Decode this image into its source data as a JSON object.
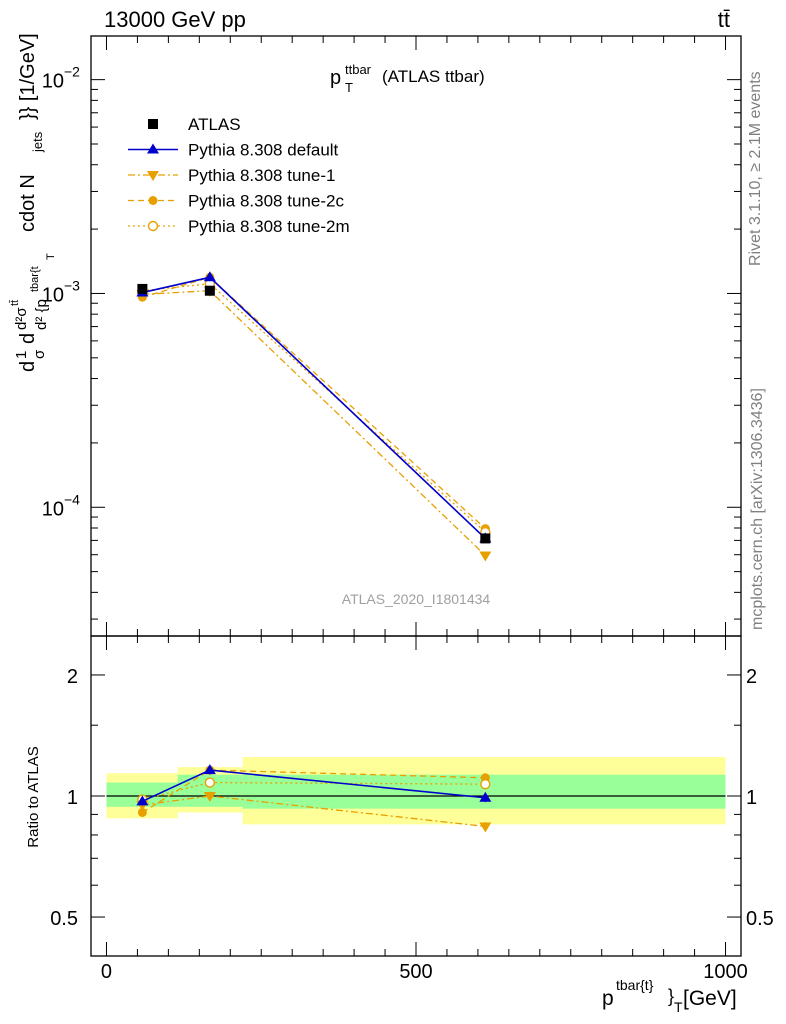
{
  "header": {
    "left": "13000 GeV pp",
    "right": "tt̄"
  },
  "side_text": {
    "rivet": "Rivet 3.1.10, ≥ 2.1M events",
    "mcplots": "mcplots.cern.ch [arXiv:1306.3436]"
  },
  "watermark": "ATLAS_2020_I1801434",
  "colors": {
    "atlas": "#000000",
    "default": "#0000cc",
    "tunes": "#e8a000",
    "band_inner": "#99ff99",
    "band_outer": "#ffff99"
  },
  "chart_data": [
    {
      "type": "line",
      "panel": "main",
      "title": "p_T^{ttbar} (ATLAS ttbar)",
      "title_parts": {
        "main": "p",
        "sup": "ttbar",
        "sub": "T",
        "suffix": "(ATLAS ttbar)"
      },
      "ylabel": "d(1/σ) d²σ^{ttbar} / d² {p_T^{tbar{t}} cdot N_jets}} [1/GeV]",
      "ylabel_parts": [
        "d",
        "1",
        "σ",
        "d",
        "d²σ",
        "tt̄",
        "d² {p",
        "tbar{t",
        "T",
        "cdot N",
        "jets",
        "}} [1/GeV]"
      ],
      "yscale": "log",
      "ylim": [
        2.5e-05,
        0.016
      ],
      "xlim": [
        -25,
        1025
      ],
      "ytick_labels": [
        {
          "value": 0.0001,
          "base": "10",
          "exp": "−4"
        },
        {
          "value": 0.001,
          "base": "10",
          "exp": "−3"
        },
        {
          "value": 0.01,
          "base": "10",
          "exp": "−2"
        }
      ],
      "legend": {
        "position": "top-left",
        "entries": [
          {
            "label": "ATLAS",
            "key": "atlas"
          },
          {
            "label": "Pythia 8.308 default",
            "key": "default"
          },
          {
            "label": "Pythia 8.308 tune-1",
            "key": "tune1"
          },
          {
            "label": "Pythia 8.308 tune-2c",
            "key": "tune2c"
          },
          {
            "label": "Pythia 8.308 tune-2m",
            "key": "tune2m"
          }
        ]
      },
      "series": [
        {
          "name": "ATLAS",
          "key": "atlas",
          "marker": "square",
          "x": [
            58,
            167,
            612
          ],
          "y": [
            0.00105,
            0.00103,
            7.15e-05
          ]
        },
        {
          "name": "Pythia 8.308 default",
          "key": "default",
          "marker": "triangle-up",
          "style": "solid",
          "x": [
            58,
            167,
            612
          ],
          "y": [
            0.00101,
            0.00119,
            7.15e-05
          ]
        },
        {
          "name": "Pythia 8.308 tune-1",
          "key": "tune1",
          "marker": "triangle-down",
          "style": "dashdot",
          "x": [
            58,
            167,
            612
          ],
          "y": [
            0.00099,
            0.00103,
            5.95e-05
          ]
        },
        {
          "name": "Pythia 8.308 tune-2c",
          "key": "tune2c",
          "marker": "circle",
          "style": "dashed",
          "x": [
            58,
            167,
            612
          ],
          "y": [
            0.00096,
            0.00119,
            7.95e-05
          ]
        },
        {
          "name": "Pythia 8.308 tune-2m",
          "key": "tune2m",
          "marker": "open-circle",
          "style": "dotted",
          "x": [
            58,
            167,
            612
          ],
          "y": [
            0.00103,
            0.00111,
            7.65e-05
          ]
        }
      ]
    },
    {
      "type": "line",
      "panel": "ratio",
      "ylabel": "Ratio to ATLAS",
      "xlabel_parts": {
        "main": "p",
        "sup": "tbar{t}",
        "close": "}",
        "sub": "T",
        "unit": "[GeV]"
      },
      "yscale": "log",
      "ylim": [
        0.4,
        2.5
      ],
      "xlim": [
        -25,
        1025
      ],
      "xtick_labels": [
        "0",
        "500",
        "1000"
      ],
      "xticks": [
        0,
        500,
        1000
      ],
      "ytick_labels": [
        "0.5",
        "1",
        "2"
      ],
      "yticks": [
        0.5,
        1,
        2
      ],
      "bands": [
        {
          "x": [
            0,
            115
          ],
          "inner": [
            0.94,
            1.08
          ],
          "outer": [
            0.88,
            1.14
          ]
        },
        {
          "x": [
            115,
            220
          ],
          "inner": [
            0.94,
            1.13
          ],
          "outer": [
            0.91,
            1.18
          ]
        },
        {
          "x": [
            220,
            1000
          ],
          "inner": [
            0.93,
            1.13
          ],
          "outer": [
            0.85,
            1.25
          ]
        }
      ],
      "series": [
        {
          "name": "Pythia 8.308 default",
          "key": "default",
          "x": [
            58,
            167,
            612
          ],
          "y": [
            0.97,
            1.16,
            0.99
          ]
        },
        {
          "name": "Pythia 8.308 tune-1",
          "key": "tune1",
          "x": [
            58,
            167,
            612
          ],
          "y": [
            0.95,
            1.0,
            0.84
          ]
        },
        {
          "name": "Pythia 8.308 tune-2c",
          "key": "tune2c",
          "x": [
            58,
            167,
            612
          ],
          "y": [
            0.91,
            1.16,
            1.11
          ]
        },
        {
          "name": "Pythia 8.308 tune-2m",
          "key": "tune2m",
          "x": [
            58,
            167,
            612
          ],
          "y": [
            0.98,
            1.08,
            1.07
          ]
        }
      ]
    }
  ]
}
